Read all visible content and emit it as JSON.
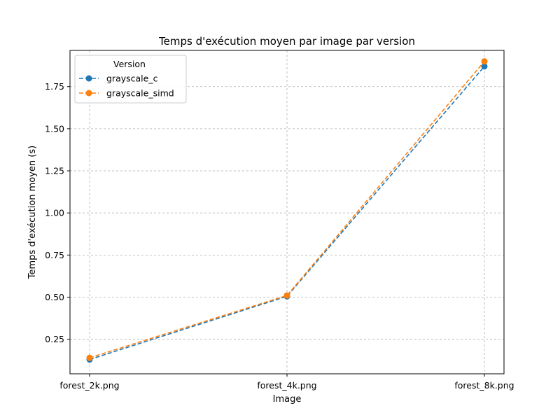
{
  "chart_data": {
    "type": "line",
    "title": "Temps d'exécution moyen par image par version",
    "xlabel": "Image",
    "ylabel": "Temps d'exécution moyen (s)",
    "categories": [
      "forest_2k.png",
      "forest_4k.png",
      "forest_8k.png"
    ],
    "ylim": [
      0.045,
      1.965
    ],
    "yticks": [
      0.25,
      0.5,
      0.75,
      1.0,
      1.25,
      1.5,
      1.75
    ],
    "ytick_labels": [
      "0.25",
      "0.50",
      "0.75",
      "1.00",
      "1.25",
      "1.50",
      "1.75"
    ],
    "grid": true,
    "legend_title": "Version",
    "legend_position": "upper-left",
    "series": [
      {
        "name": "grayscale_c",
        "values": [
          0.13,
          0.505,
          1.87
        ],
        "color": "#1f77b4",
        "linestyle": "dashed",
        "marker": "circle"
      },
      {
        "name": "grayscale_simd",
        "values": [
          0.14,
          0.51,
          1.9
        ],
        "color": "#ff7f0e",
        "linestyle": "dashed",
        "marker": "circle"
      }
    ]
  }
}
